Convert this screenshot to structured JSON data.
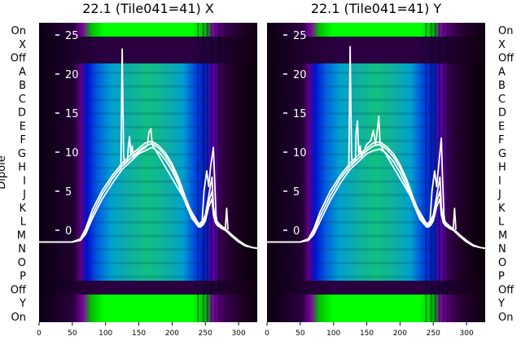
{
  "figure": {
    "left_axis_title": "Dipole",
    "dipole_labels": [
      "On",
      "X",
      "Off",
      "A",
      "B",
      "C",
      "D",
      "E",
      "F",
      "G",
      "H",
      "I",
      "J",
      "K",
      "L",
      "M",
      "N",
      "O",
      "P",
      "Off",
      "Y",
      "On"
    ]
  },
  "chart_data": [
    {
      "type": "heatmap",
      "title": "22.1 (Tile041=41) X",
      "x_ticks": [
        0,
        50,
        100,
        150,
        200,
        250,
        300
      ],
      "xlim": [
        0,
        328
      ],
      "y_overlay_ticks": [
        0,
        5,
        10,
        15,
        20,
        25
      ],
      "y_overlay_range": [
        -1,
        25
      ],
      "colormap": [
        "#000000",
        "#3a0050",
        "#8000a0",
        "#0010e0",
        "#00a0d0",
        "#10c090",
        "#00ff00"
      ],
      "band_colors": {
        "green_band": "#00ff00",
        "dark_band": "#200028",
        "main_band": "#00a0d0"
      },
      "overlay_line_color": "#ffffff",
      "overlay_lines": [
        {
          "x": [
            0,
            50,
            62,
            70,
            80,
            95,
            110,
            125,
            140,
            150,
            160,
            170,
            180,
            190,
            200,
            210,
            220,
            230,
            240,
            246,
            250,
            255,
            260,
            262,
            265,
            268,
            270,
            275,
            280,
            290,
            300,
            310,
            320,
            328
          ],
          "y": [
            -1.5,
            -1.5,
            -1.3,
            -0.5,
            1.5,
            4.0,
            6.0,
            7.8,
            9.0,
            9.8,
            10.2,
            10.6,
            10.0,
            9.0,
            7.6,
            5.8,
            3.5,
            1.5,
            0.4,
            0.6,
            1.2,
            3.0,
            4.0,
            2.0,
            1.0,
            0.6,
            0.5,
            0.2,
            0.0,
            -0.8,
            -1.5,
            -2.0,
            -2.2,
            -2.3
          ]
        },
        {
          "x": [
            0,
            50,
            62,
            70,
            80,
            95,
            110,
            125,
            140,
            150,
            160,
            170,
            180,
            190,
            200,
            210,
            220,
            230,
            240,
            246,
            250,
            255,
            260,
            262,
            265,
            268,
            270,
            275,
            280,
            290,
            300,
            310,
            320,
            328
          ],
          "y": [
            -1.5,
            -1.5,
            -1.2,
            -0.2,
            2.0,
            4.6,
            6.6,
            8.2,
            9.4,
            10.2,
            10.8,
            11.1,
            10.5,
            9.5,
            8.1,
            6.2,
            3.9,
            1.8,
            0.6,
            0.9,
            1.6,
            3.6,
            5.0,
            2.6,
            1.3,
            0.9,
            0.7,
            0.4,
            0.1,
            -0.7,
            -1.4,
            -1.9,
            -2.2,
            -2.3
          ]
        },
        {
          "x": [
            0,
            50,
            62,
            70,
            80,
            95,
            110,
            125,
            140,
            150,
            160,
            170,
            180,
            190,
            200,
            210,
            220,
            230,
            240,
            246,
            250,
            255,
            260,
            262,
            265,
            268,
            270,
            275,
            280,
            290,
            300,
            310,
            320,
            328
          ],
          "y": [
            -1.5,
            -1.5,
            -1.1,
            0.2,
            2.6,
            5.1,
            7.0,
            8.6,
            9.8,
            10.5,
            11.2,
            11.4,
            10.8,
            9.9,
            8.5,
            6.6,
            4.2,
            2.1,
            0.8,
            1.2,
            2.0,
            4.4,
            6.8,
            3.0,
            1.6,
            1.1,
            0.9,
            0.5,
            0.2,
            -0.6,
            -1.3,
            -1.9,
            -2.2,
            -2.3
          ]
        },
        {
          "x": [
            120,
            123,
            125,
            127,
            128,
            133,
            134,
            136,
            138,
            140,
            142,
            150,
            156,
            160,
            163,
            165,
            168,
            170,
            243,
            245,
            248,
            252,
            255,
            258,
            262,
            264,
            266,
            268,
            280,
            282,
            284
          ],
          "y": [
            7.6,
            8.0,
            23.2,
            10.0,
            8.4,
            9.0,
            10.5,
            12.0,
            9.6,
            10.8,
            9.4,
            10.0,
            10.4,
            10.6,
            11.0,
            12.5,
            13.0,
            11.0,
            0.4,
            1.0,
            5.0,
            7.6,
            5.6,
            8.2,
            10.6,
            6.5,
            2.0,
            0.7,
            0.2,
            2.8,
            0.1
          ]
        }
      ]
    },
    {
      "type": "heatmap",
      "title": "22.1 (Tile041=41) Y",
      "x_ticks": [
        0,
        50,
        100,
        150,
        200,
        250,
        300
      ],
      "xlim": [
        0,
        328
      ],
      "y_overlay_ticks": [
        0,
        5,
        10,
        15,
        20,
        25
      ],
      "y_overlay_range": [
        -1,
        25
      ],
      "colormap": [
        "#000000",
        "#3a0050",
        "#8000a0",
        "#0010e0",
        "#00a0d0",
        "#10c090",
        "#00ff00"
      ],
      "band_colors": {
        "green_band": "#00ff00",
        "dark_band": "#200028",
        "main_band": "#00a0d0"
      },
      "overlay_line_color": "#ffffff",
      "overlay_lines": [
        {
          "x": [
            0,
            50,
            62,
            70,
            80,
            95,
            110,
            125,
            140,
            150,
            160,
            170,
            180,
            190,
            200,
            210,
            220,
            230,
            240,
            246,
            250,
            255,
            260,
            262,
            265,
            268,
            270,
            275,
            280,
            290,
            300,
            310,
            320,
            328
          ],
          "y": [
            -1.5,
            -1.5,
            -1.3,
            -0.6,
            1.2,
            3.8,
            6.0,
            7.8,
            9.0,
            9.8,
            10.2,
            10.4,
            9.8,
            8.8,
            7.4,
            5.6,
            3.4,
            1.4,
            0.4,
            0.6,
            1.2,
            3.0,
            4.0,
            2.0,
            1.0,
            0.6,
            0.5,
            0.2,
            0.0,
            -0.8,
            -1.5,
            -2.0,
            -2.2,
            -2.3
          ]
        },
        {
          "x": [
            0,
            50,
            62,
            70,
            80,
            95,
            110,
            125,
            140,
            150,
            160,
            170,
            180,
            190,
            200,
            210,
            220,
            230,
            240,
            246,
            250,
            255,
            260,
            262,
            265,
            268,
            270,
            275,
            280,
            290,
            300,
            310,
            320,
            328
          ],
          "y": [
            -1.5,
            -1.5,
            -1.2,
            -0.3,
            1.8,
            4.4,
            6.6,
            8.2,
            9.4,
            10.2,
            10.8,
            11.0,
            10.4,
            9.4,
            8.0,
            6.1,
            3.8,
            1.7,
            0.6,
            0.9,
            1.6,
            3.6,
            5.0,
            2.6,
            1.3,
            0.9,
            0.7,
            0.4,
            0.1,
            -0.7,
            -1.4,
            -1.9,
            -2.2,
            -2.3
          ]
        },
        {
          "x": [
            0,
            50,
            62,
            70,
            80,
            95,
            110,
            125,
            140,
            150,
            160,
            170,
            180,
            190,
            200,
            210,
            220,
            230,
            240,
            246,
            250,
            255,
            260,
            262,
            265,
            268,
            270,
            275,
            280,
            290,
            300,
            310,
            320,
            328
          ],
          "y": [
            -1.5,
            -1.5,
            -1.1,
            0.1,
            2.4,
            5.0,
            7.0,
            8.6,
            9.8,
            10.5,
            11.2,
            11.3,
            10.7,
            9.8,
            8.4,
            6.5,
            4.1,
            2.0,
            0.8,
            1.2,
            2.0,
            4.4,
            6.8,
            3.0,
            1.6,
            1.1,
            0.9,
            0.5,
            0.2,
            -0.6,
            -1.3,
            -1.9,
            -2.2,
            -2.3
          ]
        },
        {
          "x": [
            120,
            123,
            125,
            127,
            128,
            133,
            134,
            136,
            138,
            140,
            142,
            150,
            156,
            160,
            163,
            165,
            168,
            170,
            243,
            245,
            248,
            252,
            255,
            258,
            262,
            264,
            266,
            268,
            280,
            282,
            284
          ],
          "y": [
            7.6,
            8.0,
            23.5,
            10.0,
            8.4,
            9.0,
            12.5,
            14.0,
            9.6,
            10.8,
            9.4,
            11.0,
            11.5,
            12.8,
            11.0,
            12.2,
            14.6,
            11.0,
            0.4,
            1.0,
            5.0,
            7.6,
            5.6,
            8.2,
            11.8,
            6.5,
            2.0,
            0.7,
            0.2,
            2.8,
            0.1
          ]
        }
      ]
    }
  ]
}
